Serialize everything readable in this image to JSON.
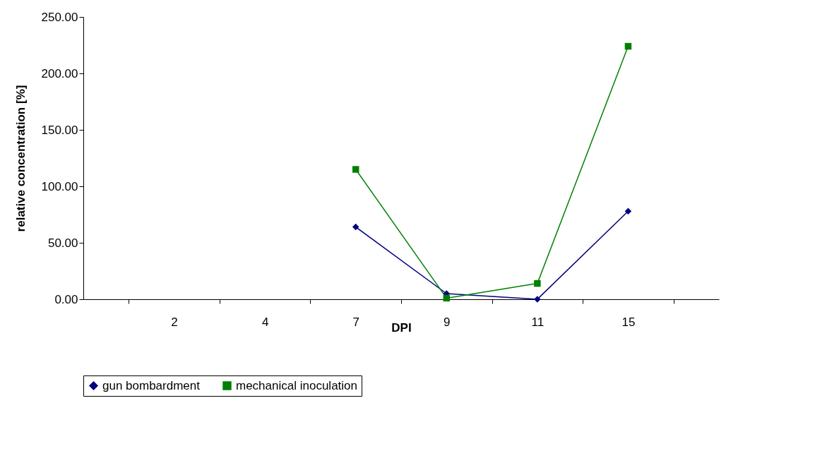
{
  "chart_data": {
    "type": "line",
    "xlabel": "DPI",
    "ylabel": "relative concentration [%]",
    "categories": [
      "2",
      "4",
      "7",
      "9",
      "11",
      "15"
    ],
    "series": [
      {
        "name": "gun bombardment",
        "color": "#000080",
        "marker": "diamond",
        "values": [
          null,
          null,
          64,
          5,
          0,
          78
        ]
      },
      {
        "name": "mechanical inoculation",
        "color": "#008000",
        "marker": "square",
        "values": [
          null,
          null,
          115,
          1,
          14,
          224
        ]
      }
    ],
    "ylim": [
      0,
      250
    ],
    "yticks": [
      {
        "value": 0,
        "label": "0.00"
      },
      {
        "value": 50,
        "label": "50.00"
      },
      {
        "value": 100,
        "label": "100.00"
      },
      {
        "value": 150,
        "label": "150.00"
      },
      {
        "value": 200,
        "label": "200.00"
      },
      {
        "value": 250,
        "label": "250.00"
      }
    ],
    "grid": false,
    "legend": "bottom"
  }
}
